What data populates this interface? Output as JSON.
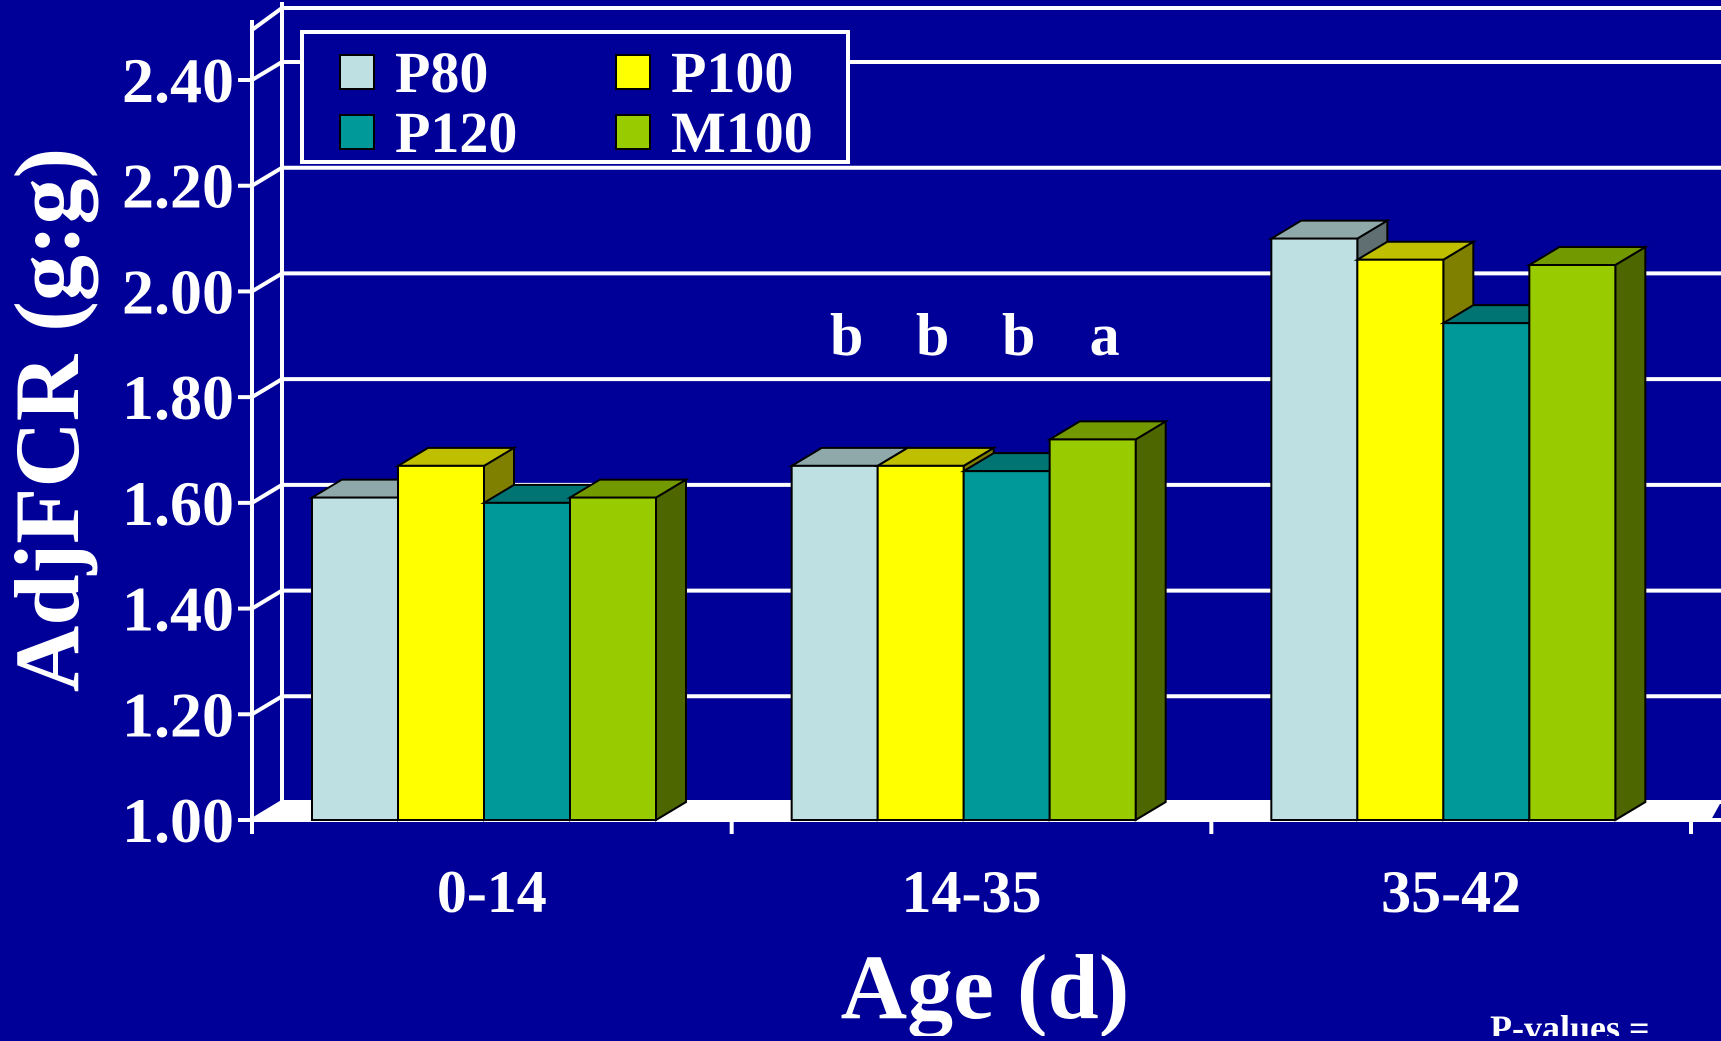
{
  "colors": {
    "background": "#000099",
    "grid": "#ffffff",
    "text": "#ffffff",
    "P80": "#bfe0e3",
    "P100": "#ffff00",
    "P120": "#009999",
    "M100": "#99cc00"
  },
  "chart_data": {
    "type": "bar",
    "style": "3d-clustered",
    "categories": [
      "0-14",
      "14-35",
      "35-42"
    ],
    "series": [
      {
        "name": "P80",
        "values": [
          1.61,
          1.67,
          2.1
        ]
      },
      {
        "name": "P100",
        "values": [
          1.67,
          1.67,
          2.06
        ]
      },
      {
        "name": "P120",
        "values": [
          1.6,
          1.66,
          1.94
        ]
      },
      {
        "name": "M100",
        "values": [
          1.61,
          1.72,
          2.05
        ]
      }
    ],
    "xlabel": "Age (d)",
    "ylabel": "AdjFCR (g:g)",
    "ylim": [
      1.0,
      2.4
    ],
    "yticks": [
      "1.00",
      "1.20",
      "1.40",
      "1.60",
      "1.80",
      "2.00",
      "2.20",
      "2.40"
    ],
    "grid": true,
    "legend_position": "top-left",
    "significance_letters": {
      "category": "14-35",
      "letters": [
        "b",
        "b",
        "b",
        "a"
      ]
    },
    "footnote": "P-values = "
  }
}
